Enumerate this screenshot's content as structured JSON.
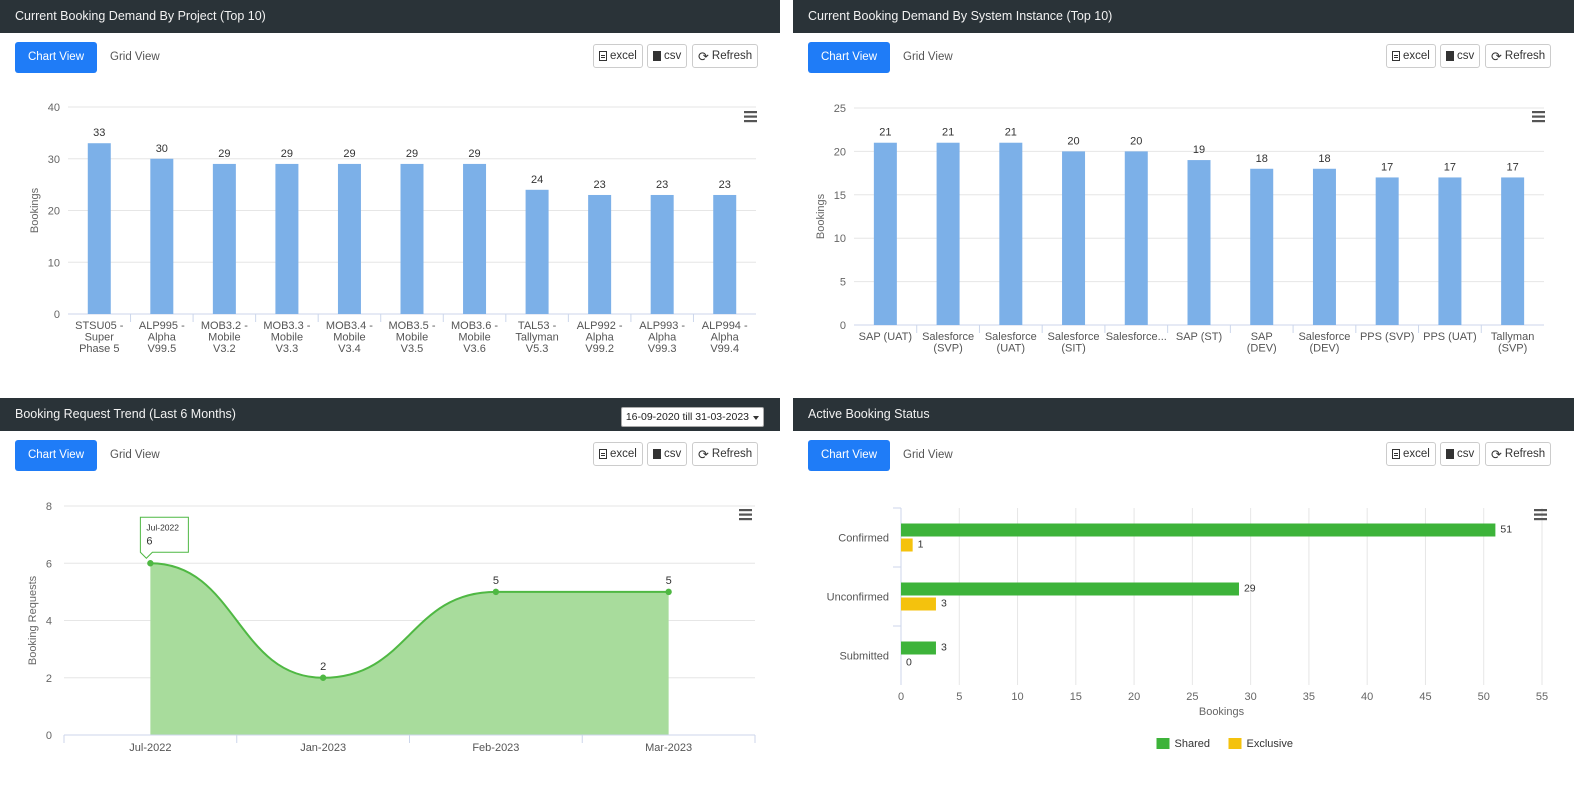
{
  "common": {
    "chart_view_label": "Chart View",
    "grid_view_label": "Grid View",
    "excel_label": "excel",
    "csv_label": "csv",
    "refresh_label": "Refresh",
    "icons": [
      "excel-file-icon",
      "csv-file-icon",
      "refresh-icon",
      "hamburger-menu-icon",
      "dropdown-caret-icon"
    ]
  },
  "panels": {
    "p1": {
      "title": "Current Booking Demand By Project (Top 10)"
    },
    "p2": {
      "title": "Current Booking Demand By System Instance (Top 10)"
    },
    "p3": {
      "title": "Booking Request Trend (Last 6 Months)",
      "date_range": "16-09-2020 till 31-03-2023"
    },
    "p4": {
      "title": "Active Booking Status"
    }
  },
  "chart_data": [
    {
      "id": "project",
      "type": "bar",
      "color": "#7cb0e8",
      "ylabel": "Bookings",
      "ylim": [
        0,
        40
      ],
      "yticks": [
        0,
        10,
        20,
        30,
        40
      ],
      "categories": [
        [
          "STSU05 -",
          "Super",
          "Phase 5"
        ],
        [
          "ALP995 -",
          "Alpha",
          "V99.5"
        ],
        [
          "MOB3.2 -",
          "Mobile",
          "V3.2"
        ],
        [
          "MOB3.3 -",
          "Mobile",
          "V3.3"
        ],
        [
          "MOB3.4 -",
          "Mobile",
          "V3.4"
        ],
        [
          "MOB3.5 -",
          "Mobile",
          "V3.5"
        ],
        [
          "MOB3.6 -",
          "Mobile",
          "V3.6"
        ],
        [
          "TAL53 -",
          "Tallyman",
          "V5.3"
        ],
        [
          "ALP992 -",
          "Alpha",
          "V99.2"
        ],
        [
          "ALP993 -",
          "Alpha",
          "V99.3"
        ],
        [
          "ALP994 -",
          "Alpha",
          "V99.4"
        ]
      ],
      "values": [
        33,
        30,
        29,
        29,
        29,
        29,
        29,
        24,
        23,
        23,
        23
      ]
    },
    {
      "id": "system",
      "type": "bar",
      "color": "#7cb0e8",
      "ylabel": "Bookings",
      "ylim": [
        0,
        25
      ],
      "yticks": [
        0,
        5,
        10,
        15,
        20,
        25
      ],
      "categories": [
        [
          "SAP (UAT)"
        ],
        [
          "Salesforce",
          "(SVP)"
        ],
        [
          "Salesforce",
          "(UAT)"
        ],
        [
          "Salesforce",
          "(SIT)"
        ],
        [
          "Salesforce..."
        ],
        [
          "SAP (ST)"
        ],
        [
          "SAP",
          "(DEV)"
        ],
        [
          "Salesforce",
          "(DEV)"
        ],
        [
          "PPS (SVP)"
        ],
        [
          "PPS (UAT)"
        ],
        [
          "Tallyman",
          "(SVP)"
        ]
      ],
      "values": [
        21,
        21,
        21,
        20,
        20,
        19,
        18,
        18,
        17,
        17,
        17
      ]
    },
    {
      "id": "trend",
      "type": "area",
      "color": "#4fb843",
      "fill": "#a8dc9c",
      "ylabel": "Booking Requests",
      "ylim": [
        0,
        8
      ],
      "yticks": [
        0,
        2,
        4,
        6,
        8
      ],
      "categories": [
        "Jul-2022",
        "Jan-2023",
        "Feb-2023",
        "Mar-2023"
      ],
      "values": [
        6,
        2,
        5,
        5
      ],
      "tooltip": {
        "label": "Jul-2022",
        "value": "6"
      }
    },
    {
      "id": "status",
      "type": "bar",
      "orientation": "horizontal",
      "xlabel": "Bookings",
      "xlim": [
        0,
        55
      ],
      "xticks": [
        0,
        5,
        10,
        15,
        20,
        25,
        30,
        35,
        40,
        45,
        50,
        55
      ],
      "categories": [
        "Confirmed",
        "Unconfirmed",
        "Submitted"
      ],
      "series": [
        {
          "name": "Shared",
          "color": "#3db33a",
          "values": [
            51,
            29,
            3
          ]
        },
        {
          "name": "Exclusive",
          "color": "#f4c20d",
          "values": [
            1,
            3,
            0
          ]
        }
      ],
      "legend": "bottom-center"
    }
  ]
}
